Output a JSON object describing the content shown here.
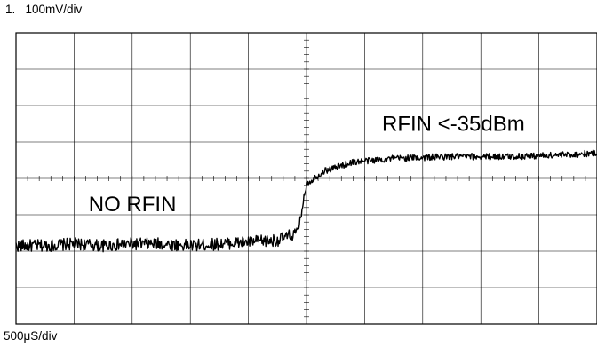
{
  "channel_label": "1.   100mV/div",
  "timebase_label": "500μS/div",
  "chart_data": {
    "type": "line",
    "title": "",
    "xlabel": "",
    "ylabel": "",
    "grid": true,
    "x_divisions": 10,
    "y_divisions": 8,
    "xlim": [
      0,
      10
    ],
    "ylim": [
      -4,
      4
    ],
    "series": [
      {
        "x_div": [
          0,
          0.5,
          1.0,
          1.5,
          2.0,
          2.5,
          3.0,
          3.5,
          4.0,
          4.5,
          4.85,
          4.95,
          5.0,
          5.3,
          5.8,
          6.5,
          7.5,
          8.5,
          9.5,
          10.0
        ],
        "y_div": [
          -1.85,
          -1.85,
          -1.8,
          -1.85,
          -1.8,
          -1.8,
          -1.85,
          -1.8,
          -1.75,
          -1.7,
          -1.5,
          -0.6,
          -0.15,
          0.2,
          0.45,
          0.55,
          0.6,
          0.6,
          0.65,
          0.7
        ],
        "color": "#000000"
      }
    ],
    "annotations": [
      {
        "text": "NO RFIN",
        "x_div": 1.25,
        "y_div": -0.9
      },
      {
        "text": "RFIN <-35dBm",
        "x_div": 6.3,
        "y_div": 1.3
      }
    ]
  }
}
